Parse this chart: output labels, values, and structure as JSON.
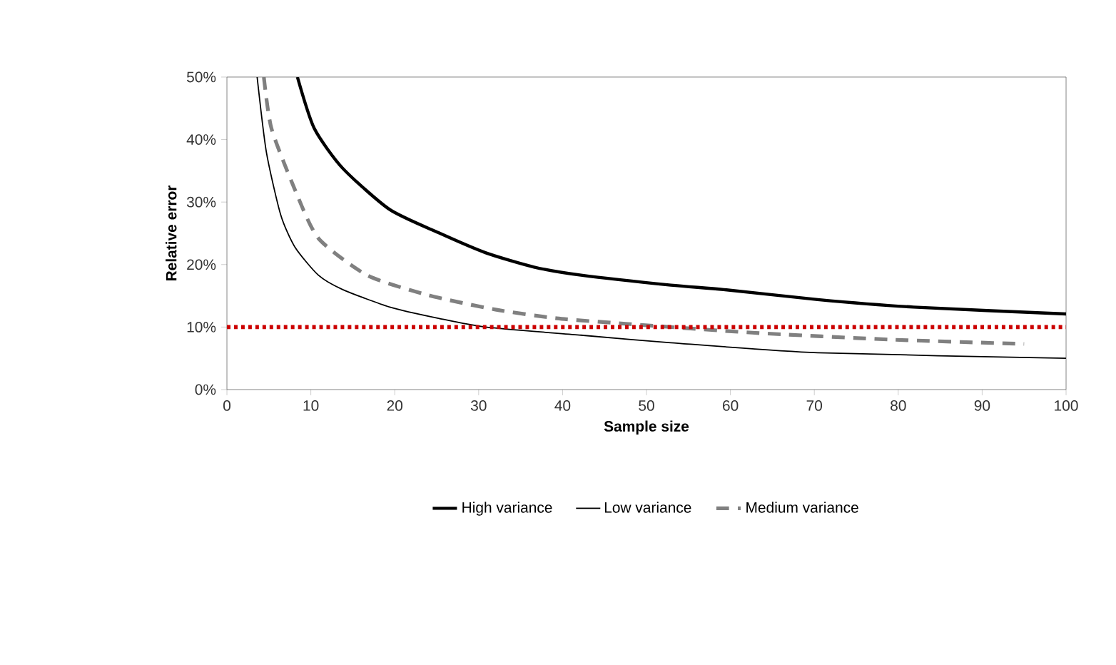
{
  "chart_data": {
    "type": "line",
    "xlabel": "Sample size",
    "ylabel": "Relative error",
    "xlim": [
      0,
      100
    ],
    "xticks": [
      0,
      10,
      20,
      30,
      40,
      50,
      60,
      70,
      80,
      90,
      100
    ],
    "ylim": [
      0,
      50
    ],
    "yticks": [
      {
        "value": 0,
        "label": "0%"
      },
      {
        "value": 10,
        "label": "10%"
      },
      {
        "value": 20,
        "label": "20%"
      },
      {
        "value": 30,
        "label": "30%"
      },
      {
        "value": 40,
        "label": "40%"
      },
      {
        "value": 50,
        "label": "50%"
      }
    ],
    "grid": false,
    "legend": "bottom",
    "marker": "none",
    "series": [
      {
        "name": "High variance",
        "color": "#000000",
        "line_style": "solid",
        "x": [
          8.4,
          10.4,
          13.8,
          19.4,
          25.2,
          30.8,
          36.6,
          42.2,
          52.9,
          59.2,
          70.4,
          81.8,
          100
        ],
        "values": [
          50,
          41.8,
          35.4,
          28.8,
          25.1,
          21.9,
          19.6,
          18.3,
          16.7,
          16.0,
          14.4,
          13.2,
          12.1
        ]
      },
      {
        "name": "Low variance",
        "color": "#000000",
        "line_style": "solid",
        "x": [
          3.6,
          4.7,
          6.4,
          8.1,
          10.9,
          13.8,
          19.4,
          25.2,
          30.8,
          42.2,
          52.9,
          70.4,
          100
        ],
        "values": [
          50,
          38,
          28,
          22.8,
          18.3,
          16,
          13.2,
          11.4,
          10,
          8.7,
          7.5,
          5.9,
          5.0
        ]
      },
      {
        "name": "Medium variance",
        "color": "#808080",
        "line_style": "dashed",
        "x": [
          4.4,
          5.3,
          8.1,
          10.9,
          16.7,
          24,
          32,
          39.3,
          47.8,
          62.6,
          79,
          95
        ],
        "values": [
          50,
          41.8,
          32,
          24.2,
          18.3,
          15.1,
          12.8,
          11.4,
          10.5,
          9.1,
          8.0,
          7.3
        ]
      }
    ],
    "ref_lines": [
      {
        "axis": "y",
        "value": 10,
        "color": "#cc0000",
        "line_style": "dotted"
      }
    ]
  }
}
